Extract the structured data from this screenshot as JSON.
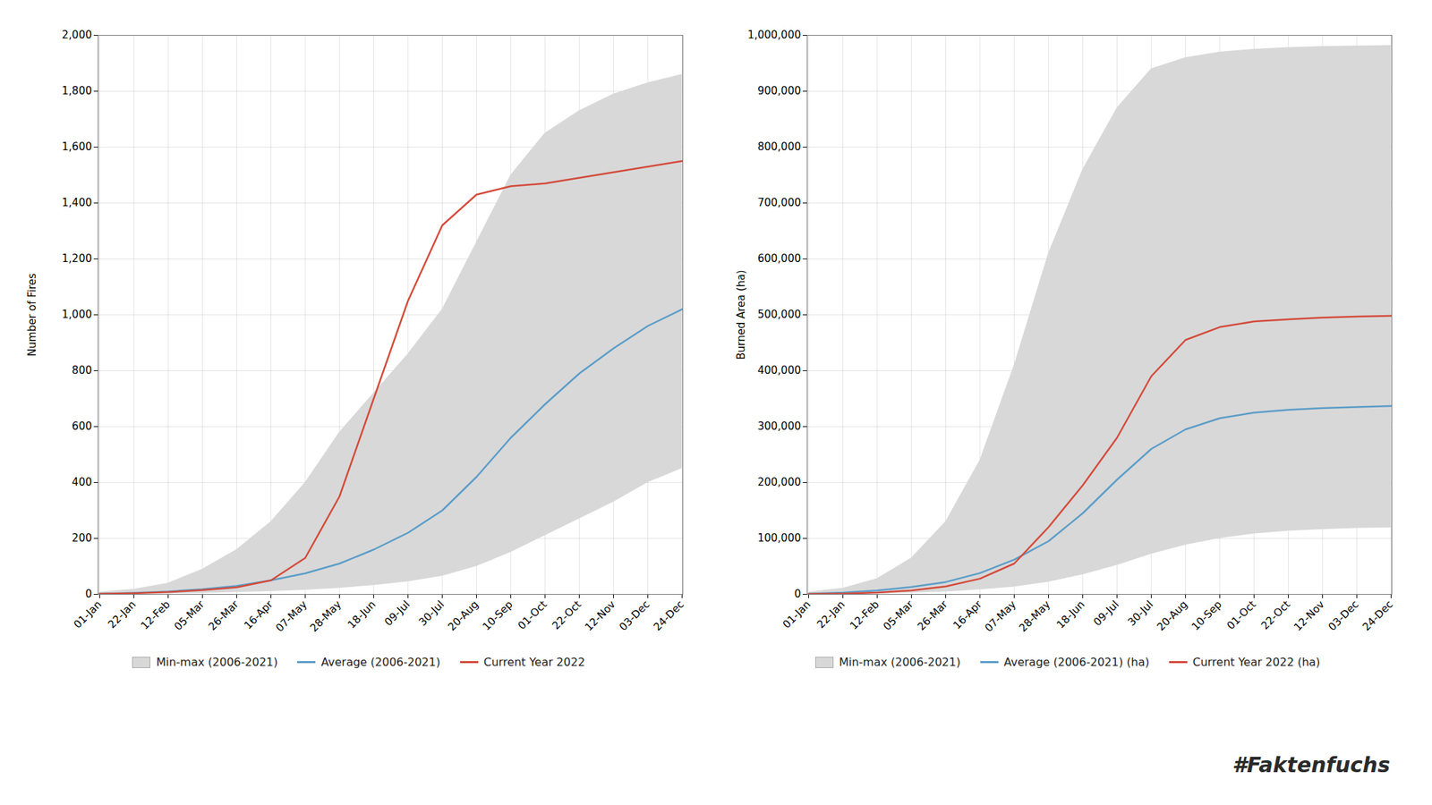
{
  "chart_data": [
    {
      "type": "line",
      "categories": [
        "01-Jan",
        "22-Jan",
        "12-Feb",
        "05-Mar",
        "26-Mar",
        "16-Apr",
        "07-May",
        "28-May",
        "18-Jun",
        "09-Jul",
        "30-Jul",
        "20-Aug",
        "10-Sep",
        "01-Oct",
        "22-Oct",
        "12-Nov",
        "03-Dec",
        "24-Dec"
      ],
      "y_label": "Number of Fires",
      "ylim": [
        0,
        2000
      ],
      "yticks": [
        0,
        200,
        400,
        600,
        800,
        {
          "value": 1000,
          "label": "1,000"
        },
        {
          "value": 1200,
          "label": "1,200"
        },
        {
          "value": 1400,
          "label": "1,400"
        },
        {
          "value": 1600,
          "label": "1,600"
        },
        {
          "value": 1800,
          "label": "1,800"
        },
        {
          "value": 2000,
          "label": "2,000"
        }
      ],
      "grid": true,
      "legend": "bottom",
      "series": [
        {
          "name": "Min-max (2006-2021)",
          "type": "area",
          "color": "#d8d8d8",
          "low": [
            0,
            1,
            2,
            4,
            7,
            10,
            15,
            22,
            32,
            45,
            65,
            100,
            150,
            210,
            270,
            330,
            400,
            450
          ],
          "high": [
            8,
            18,
            40,
            90,
            160,
            260,
            400,
            580,
            720,
            860,
            1020,
            1260,
            1500,
            1650,
            1730,
            1790,
            1830,
            1860
          ]
        },
        {
          "name": "Average (2006-2021)",
          "type": "line",
          "color": "#5b9dc9",
          "values": [
            2,
            5,
            10,
            18,
            30,
            50,
            75,
            110,
            160,
            220,
            300,
            420,
            560,
            680,
            790,
            880,
            960,
            1020
          ]
        },
        {
          "name": "Current Year 2022",
          "type": "line",
          "color": "#d44b3b",
          "values": [
            2,
            4,
            8,
            15,
            25,
            50,
            130,
            350,
            700,
            1050,
            1320,
            1430,
            1460,
            1470,
            1490,
            1510,
            1530,
            1550
          ]
        }
      ]
    },
    {
      "type": "line",
      "categories": [
        "01-Jan",
        "22-Jan",
        "12-Feb",
        "05-Mar",
        "26-Mar",
        "16-Apr",
        "07-May",
        "28-May",
        "18-Jun",
        "09-Jul",
        "30-Jul",
        "20-Aug",
        "10-Sep",
        "01-Oct",
        "22-Oct",
        "12-Nov",
        "03-Dec",
        "24-Dec"
      ],
      "y_label": "Burned Area (ha)",
      "ylim": [
        0,
        1000000
      ],
      "yticks": [
        0,
        {
          "value": 100000,
          "label": "100,000"
        },
        {
          "value": 200000,
          "label": "200,000"
        },
        {
          "value": 300000,
          "label": "300,000"
        },
        {
          "value": 400000,
          "label": "400,000"
        },
        {
          "value": 500000,
          "label": "500,000"
        },
        {
          "value": 600000,
          "label": "600,000"
        },
        {
          "value": 700000,
          "label": "700,000"
        },
        {
          "value": 800000,
          "label": "800,000"
        },
        {
          "value": 900000,
          "label": "900,000"
        },
        {
          "value": 1000000,
          "label": "1,000,000"
        }
      ],
      "grid": true,
      "legend": "bottom",
      "annotations": [
        "#Faktenfuchs"
      ],
      "series": [
        {
          "name": "Min-max (2006-2021)",
          "type": "area",
          "color": "#d8d8d8",
          "low": [
            200,
            500,
            1200,
            2500,
            4500,
            8000,
            13000,
            22000,
            35000,
            52000,
            72000,
            88000,
            100000,
            108000,
            113000,
            116000,
            118000,
            119000
          ],
          "high": [
            4000,
            11000,
            28000,
            65000,
            130000,
            240000,
            410000,
            610000,
            760000,
            870000,
            940000,
            960000,
            970000,
            975000,
            978000,
            980000,
            981000,
            982000
          ]
        },
        {
          "name": "Average (2006-2021) (ha)",
          "type": "line",
          "color": "#5b9dc9",
          "values": [
            1000,
            3000,
            7000,
            13000,
            22000,
            38000,
            62000,
            95000,
            145000,
            205000,
            260000,
            295000,
            315000,
            325000,
            330000,
            333000,
            335000,
            337000
          ]
        },
        {
          "name": "Current Year 2022 (ha)",
          "type": "line",
          "color": "#d44b3b",
          "values": [
            500,
            1200,
            3000,
            7000,
            14000,
            28000,
            55000,
            120000,
            195000,
            280000,
            390000,
            455000,
            478000,
            488000,
            492000,
            495000,
            497000,
            498000
          ]
        }
      ]
    }
  ]
}
